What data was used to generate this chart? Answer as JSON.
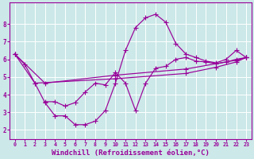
{
  "background_color": "#cce8e8",
  "grid_color": "#b0d8d8",
  "line_color": "#990099",
  "xlabel": "Windchill (Refroidissement éolien,°C)",
  "xlabel_fontsize": 6.5,
  "ytick_labels": [
    "2",
    "3",
    "4",
    "5",
    "6",
    "7",
    "8"
  ],
  "xtick_labels": [
    "0",
    "1",
    "2",
    "3",
    "4",
    "5",
    "6",
    "7",
    "8",
    "9",
    "10",
    "11",
    "12",
    "13",
    "14",
    "15",
    "16",
    "17",
    "18",
    "19",
    "20",
    "21",
    "22",
    "23"
  ],
  "xlim": [
    -0.5,
    23.5
  ],
  "ylim": [
    1.5,
    9.2
  ],
  "line1_x": [
    0,
    1,
    2,
    3,
    4,
    5,
    6,
    7,
    8,
    9,
    10,
    11,
    12,
    13,
    14,
    15,
    16,
    17,
    18,
    19,
    20,
    21,
    22,
    23
  ],
  "line1_y": [
    6.3,
    5.7,
    4.65,
    3.55,
    2.8,
    2.8,
    2.3,
    2.3,
    2.5,
    3.1,
    4.65,
    6.5,
    7.8,
    8.35,
    8.55,
    8.1,
    6.9,
    6.3,
    6.1,
    5.9,
    5.8,
    6.0,
    6.5,
    6.1
  ],
  "line2_x": [
    0,
    2,
    10,
    17,
    20,
    22,
    23
  ],
  "line2_y": [
    6.3,
    4.65,
    4.9,
    5.2,
    5.55,
    5.85,
    6.1
  ],
  "line3_x": [
    0,
    3,
    10,
    17,
    22,
    23
  ],
  "line3_y": [
    6.3,
    4.65,
    5.1,
    5.45,
    5.95,
    6.1
  ],
  "line4_x": [
    3,
    4,
    5,
    6,
    7,
    8,
    9,
    10,
    11,
    12,
    13,
    14,
    15,
    16,
    17,
    18,
    19,
    20,
    21,
    22,
    23
  ],
  "line4_y": [
    3.6,
    3.6,
    3.35,
    3.55,
    4.15,
    4.65,
    4.55,
    5.25,
    4.65,
    3.1,
    4.65,
    5.5,
    5.6,
    6.0,
    6.1,
    5.9,
    5.85,
    5.75,
    5.85,
    6.0,
    6.1
  ]
}
